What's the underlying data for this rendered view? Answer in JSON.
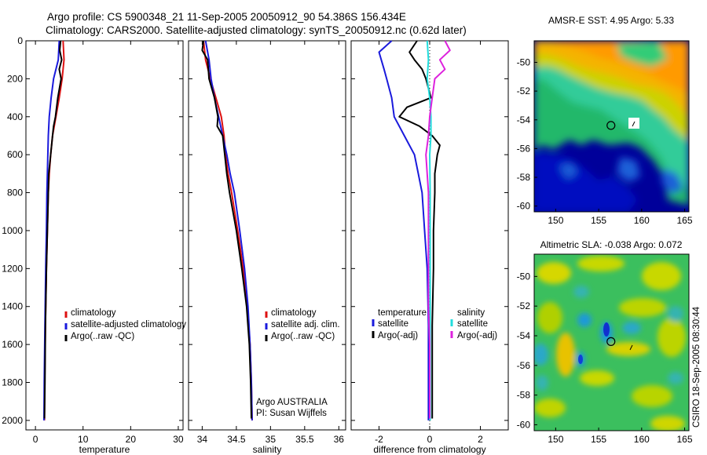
{
  "header": {
    "title_line1": "Argo profile: CS 5900348_21 11-Sep-2005 20050912_90 54.386S 156.434E",
    "title_line2": "Climatology: CARS2000. Satellite-adjusted climatology: synTS_20050912.nc (0.62d later)"
  },
  "colors": {
    "climatology": "#dd1111",
    "satellite": "#1a1adc",
    "argo": "#000000",
    "satellite_salinity": "#22dddd",
    "argo_salinity_diff": "#dd22dd"
  },
  "credits": {
    "line1": "Argo AUSTRALIA",
    "line2": "PI: Susan Wijffels",
    "stamp": "CSIRO 18-Sep-2005 08:30:44"
  },
  "chart_data": [
    {
      "type": "line",
      "panel": "temperature",
      "xlabel": "temperature",
      "ylabel": "",
      "xlim": [
        -2,
        31
      ],
      "ylim": [
        2050,
        0
      ],
      "xticks": [
        "0",
        "10",
        "20",
        "30"
      ],
      "yticks": [
        "0",
        "200",
        "400",
        "600",
        "800",
        "1000",
        "1200",
        "1400",
        "1600",
        "1800",
        "2000"
      ],
      "legend": [
        "climatology",
        "satellite-adjusted climatology",
        "Argo(..raw -QC)"
      ],
      "legend_position": "lower-right",
      "series": [
        {
          "name": "climatology",
          "color": "#dd1111",
          "points": [
            [
              5.8,
              0
            ],
            [
              6.0,
              100
            ],
            [
              5.6,
              200
            ],
            [
              5.0,
              300
            ],
            [
              4.3,
              400
            ],
            [
              3.6,
              500
            ],
            [
              3.2,
              600
            ],
            [
              2.9,
              700
            ],
            [
              2.7,
              800
            ],
            [
              2.5,
              1000
            ],
            [
              2.3,
              1200
            ],
            [
              2.1,
              1500
            ],
            [
              1.95,
              1800
            ],
            [
              1.9,
              2000
            ]
          ]
        },
        {
          "name": "satellite-adjusted climatology",
          "color": "#1a1adc",
          "points": [
            [
              5.0,
              0
            ],
            [
              4.8,
              100
            ],
            [
              3.8,
              200
            ],
            [
              3.3,
              300
            ],
            [
              2.9,
              400
            ],
            [
              2.7,
              500
            ],
            [
              2.6,
              600
            ],
            [
              2.5,
              700
            ],
            [
              2.4,
              800
            ],
            [
              2.3,
              1000
            ],
            [
              2.15,
              1200
            ],
            [
              2.0,
              1500
            ],
            [
              1.85,
              1800
            ],
            [
              1.8,
              2000
            ]
          ]
        },
        {
          "name": "Argo(..raw -QC)",
          "color": "#000000",
          "points": [
            [
              5.3,
              0
            ],
            [
              5.1,
              50
            ],
            [
              5.5,
              100
            ],
            [
              5.0,
              150
            ],
            [
              5.4,
              200
            ],
            [
              4.7,
              300
            ],
            [
              4.2,
              400
            ],
            [
              3.8,
              450
            ],
            [
              3.6,
              500
            ],
            [
              3.2,
              600
            ],
            [
              3.0,
              650
            ],
            [
              2.8,
              700
            ],
            [
              2.7,
              800
            ],
            [
              2.5,
              1000
            ],
            [
              2.3,
              1200
            ],
            [
              2.1,
              1500
            ],
            [
              2.0,
              1800
            ],
            [
              1.9,
              1990
            ]
          ]
        }
      ]
    },
    {
      "type": "line",
      "panel": "salinity",
      "xlabel": "salinity",
      "ylabel": "",
      "xlim": [
        33.8,
        36.1
      ],
      "ylim": [
        2050,
        0
      ],
      "xticks": [
        "34",
        "34.5",
        "35",
        "35.5",
        "36"
      ],
      "legend": [
        "climatology",
        "satellite adj. clim.",
        "Argo(..raw -QC)"
      ],
      "legend_position": "lower-right",
      "series": [
        {
          "name": "climatology",
          "color": "#dd1111",
          "points": [
            [
              34.02,
              0
            ],
            [
              34.05,
              100
            ],
            [
              34.12,
              200
            ],
            [
              34.2,
              300
            ],
            [
              34.28,
              400
            ],
            [
              34.32,
              500
            ],
            [
              34.34,
              600
            ],
            [
              34.38,
              700
            ],
            [
              34.43,
              800
            ],
            [
              34.52,
              1000
            ],
            [
              34.6,
              1200
            ],
            [
              34.66,
              1400
            ],
            [
              34.7,
              1600
            ],
            [
              34.72,
              1800
            ],
            [
              34.73,
              2000
            ]
          ]
        },
        {
          "name": "satellite adj. clim.",
          "color": "#1a1adc",
          "points": [
            [
              34.05,
              0
            ],
            [
              34.1,
              100
            ],
            [
              34.13,
              200
            ],
            [
              34.18,
              300
            ],
            [
              34.24,
              400
            ],
            [
              34.3,
              500
            ],
            [
              34.36,
              600
            ],
            [
              34.41,
              700
            ],
            [
              34.47,
              800
            ],
            [
              34.55,
              1000
            ],
            [
              34.62,
              1200
            ],
            [
              34.67,
              1400
            ],
            [
              34.7,
              1600
            ],
            [
              34.72,
              1800
            ],
            [
              34.73,
              2000
            ]
          ]
        },
        {
          "name": "Argo(..raw -QC)",
          "color": "#000000",
          "points": [
            [
              34.02,
              0
            ],
            [
              34.0,
              50
            ],
            [
              34.08,
              100
            ],
            [
              34.1,
              200
            ],
            [
              34.18,
              300
            ],
            [
              34.23,
              400
            ],
            [
              34.22,
              450
            ],
            [
              34.3,
              500
            ],
            [
              34.33,
              600
            ],
            [
              34.36,
              700
            ],
            [
              34.4,
              800
            ],
            [
              34.5,
              1000
            ],
            [
              34.58,
              1200
            ],
            [
              34.65,
              1400
            ],
            [
              34.69,
              1600
            ],
            [
              34.71,
              1800
            ],
            [
              34.72,
              1990
            ]
          ]
        }
      ]
    },
    {
      "type": "line",
      "panel": "difference",
      "xlabel": "difference from climatology",
      "ylabel": "",
      "xlim": [
        -3.1,
        3.1
      ],
      "ylim": [
        2050,
        0
      ],
      "xticks": [
        "-2",
        "0",
        "2"
      ],
      "legend_groups": [
        {
          "heading": "temperature",
          "entries": [
            "satellite",
            "Argo(-adj)"
          ]
        },
        {
          "heading": "salinity",
          "entries": [
            "satellite",
            "Argo(-adj)"
          ]
        }
      ],
      "legend_position": "lower-right",
      "series": [
        {
          "name": "temperature satellite",
          "color": "#1a1adc",
          "points": [
            [
              -1.5,
              0
            ],
            [
              -2.0,
              60
            ],
            [
              -1.8,
              150
            ],
            [
              -1.7,
              200
            ],
            [
              -1.5,
              300
            ],
            [
              -1.4,
              400
            ],
            [
              -1.0,
              500
            ],
            [
              -0.6,
              600
            ],
            [
              -0.45,
              700
            ],
            [
              -0.3,
              800
            ],
            [
              -0.2,
              1000
            ],
            [
              -0.1,
              1200
            ],
            [
              -0.05,
              1500
            ],
            [
              -0.05,
              1800
            ],
            [
              -0.05,
              2000
            ]
          ]
        },
        {
          "name": "temperature Argo(-adj)",
          "color": "#000000",
          "points": [
            [
              -0.5,
              0
            ],
            [
              -0.8,
              60
            ],
            [
              -0.6,
              100
            ],
            [
              -0.3,
              150
            ],
            [
              -0.15,
              200
            ],
            [
              0.05,
              300
            ],
            [
              -0.9,
              350
            ],
            [
              -1.2,
              400
            ],
            [
              -0.4,
              450
            ],
            [
              0.1,
              500
            ],
            [
              0.4,
              550
            ],
            [
              0.3,
              600
            ],
            [
              0.2,
              700
            ],
            [
              0.2,
              800
            ],
            [
              0.15,
              1000
            ],
            [
              0.15,
              1200
            ],
            [
              0.1,
              1500
            ],
            [
              0.1,
              1800
            ],
            [
              0.1,
              1990
            ]
          ]
        },
        {
          "name": "salinity satellite",
          "color": "#22dddd",
          "points": [
            [
              -0.1,
              0
            ],
            [
              -0.05,
              100
            ],
            [
              -0.1,
              200
            ],
            [
              0.0,
              300
            ],
            [
              0.05,
              400
            ],
            [
              0.05,
              500
            ],
            [
              0.0,
              600
            ],
            [
              0.02,
              800
            ],
            [
              0.02,
              1000
            ],
            [
              0.02,
              1500
            ],
            [
              0.02,
              2000
            ]
          ]
        },
        {
          "name": "salinity Argo(-adj)",
          "color": "#dd22dd",
          "points": [
            [
              0.6,
              0
            ],
            [
              0.8,
              50
            ],
            [
              0.4,
              100
            ],
            [
              0.6,
              150
            ],
            [
              0.2,
              200
            ],
            [
              0.1,
              300
            ],
            [
              0.0,
              400
            ],
            [
              -0.05,
              500
            ],
            [
              -0.15,
              600
            ],
            [
              -0.1,
              700
            ],
            [
              -0.05,
              800
            ],
            [
              -0.05,
              1000
            ],
            [
              -0.05,
              1200
            ],
            [
              -0.05,
              1400
            ],
            [
              0.0,
              1600
            ],
            [
              0.0,
              1800
            ],
            [
              0.0,
              1990
            ]
          ]
        }
      ]
    },
    {
      "type": "heatmap",
      "panel": "sst_map",
      "title": "AMSR-E SST: 4.95 Argo: 5.33",
      "xlim": [
        147.5,
        165.5
      ],
      "ylim": [
        -60.4,
        -48.5
      ],
      "xticks": [
        "150",
        "155",
        "160",
        "165"
      ],
      "yticks": [
        "-50",
        "-52",
        "-54",
        "-56",
        "-58",
        "-60"
      ],
      "marker": {
        "lon": 156.43,
        "lat": -54.39
      }
    },
    {
      "type": "heatmap",
      "panel": "sla_map",
      "title": "Altimetric SLA: -0.038 Argo: 0.072",
      "xlim": [
        147.5,
        165.5
      ],
      "ylim": [
        -60.4,
        -48.5
      ],
      "xticks": [
        "150",
        "155",
        "160",
        "165"
      ],
      "yticks": [
        "-50",
        "-52",
        "-54",
        "-56",
        "-58",
        "-60"
      ],
      "marker": {
        "lon": 156.43,
        "lat": -54.39
      }
    }
  ]
}
